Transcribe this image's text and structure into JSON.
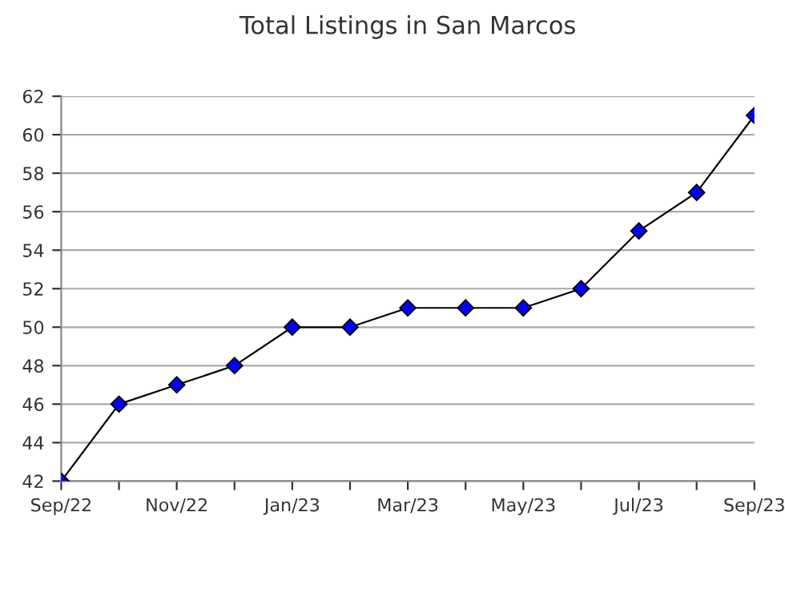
{
  "chart_data": {
    "type": "line",
    "title": "Total Listings in San Marcos",
    "categories": [
      "Sep/22",
      null,
      "Nov/22",
      null,
      "Jan/23",
      null,
      "Mar/23",
      null,
      "May/23",
      null,
      "Jul/23",
      null,
      "Sep/23"
    ],
    "series": [
      {
        "color": "#0000ff",
        "values": [
          42,
          46,
          47,
          48,
          50,
          50,
          51,
          51,
          51,
          52,
          55,
          57,
          61
        ]
      }
    ],
    "ylim": [
      42,
      62
    ],
    "yticks": [
      42,
      44,
      46,
      48,
      50,
      52,
      54,
      56,
      58,
      60,
      62
    ],
    "grid": "y",
    "marker": "diamond",
    "line_style": "solid",
    "legend": false
  }
}
